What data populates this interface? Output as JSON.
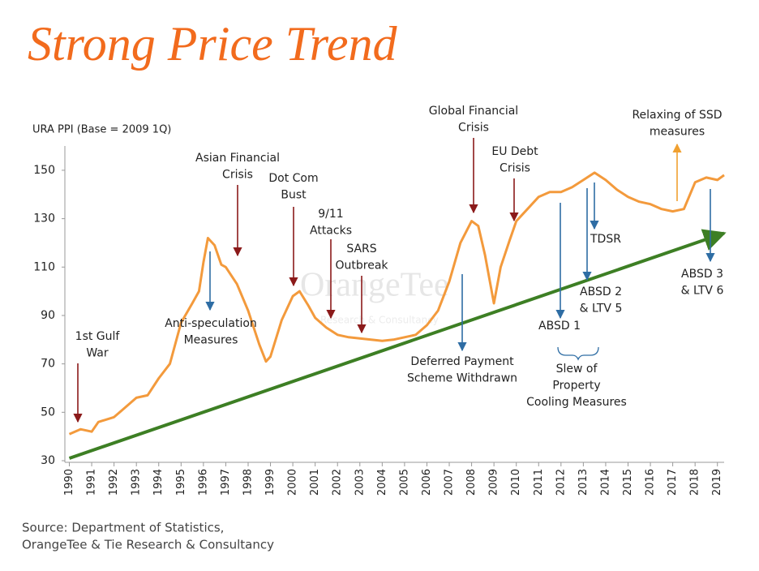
{
  "chart_data": {
    "type": "line",
    "title": "Strong Price Trend",
    "y_label": "URA PPI (Base = 2009 1Q)",
    "source": [
      "Source: Department of Statistics,",
      "OrangeTee & Tie Research & Consultancy"
    ],
    "watermark": [
      "OrangeTee",
      "Research & Consultancy"
    ],
    "color": "#f39a3c",
    "x": [
      1990.0,
      1990.5,
      1991.0,
      1991.3,
      1992.0,
      1992.5,
      1993.0,
      1993.5,
      1994.0,
      1994.5,
      1995.0,
      1995.5,
      1995.8,
      1996.0,
      1996.2,
      1996.5,
      1996.8,
      1997.0,
      1997.5,
      1998.0,
      1998.5,
      1998.8,
      1999.0,
      1999.5,
      2000.0,
      2000.3,
      2000.7,
      2001.0,
      2001.5,
      2002.0,
      2002.5,
      2003.0,
      2003.5,
      2004.0,
      2004.5,
      2005.0,
      2005.5,
      2006.0,
      2006.5,
      2007.0,
      2007.5,
      2008.0,
      2008.3,
      2008.6,
      2009.0,
      2009.3,
      2009.7,
      2010.0,
      2010.5,
      2011.0,
      2011.5,
      2012.0,
      2012.5,
      2013.0,
      2013.5,
      2014.0,
      2014.5,
      2015.0,
      2015.5,
      2016.0,
      2016.5,
      2017.0,
      2017.5,
      2018.0,
      2018.5,
      2019.0,
      2019.3
    ],
    "values": [
      41,
      43,
      42,
      46,
      48,
      52,
      56,
      57,
      64,
      70,
      87,
      95,
      100,
      112,
      122,
      119,
      111,
      110,
      103,
      92,
      78,
      71,
      73,
      88,
      98,
      100,
      94,
      89,
      85,
      82,
      81,
      80.5,
      80,
      79.5,
      80,
      81,
      82,
      86,
      92,
      104,
      120,
      129,
      127,
      115,
      95,
      110,
      121,
      129,
      134,
      139,
      141,
      141,
      143,
      146,
      149,
      146,
      142,
      139,
      137,
      136,
      134,
      133,
      134,
      145,
      147,
      146,
      148
    ],
    "trend": {
      "x": [
        1990,
        2019.3
      ],
      "values": [
        31,
        124
      ],
      "color": "#3d7f24"
    },
    "xlim": [
      1989.8,
      2019.3
    ],
    "ylim": [
      30,
      155
    ],
    "xticks": [
      1990,
      1991,
      1992,
      1993,
      1994,
      1995,
      1996,
      1997,
      1998,
      1999,
      2000,
      2001,
      2002,
      2003,
      2004,
      2005,
      2006,
      2007,
      2008,
      2009,
      2010,
      2011,
      2012,
      2013,
      2014,
      2015,
      2016,
      2017,
      2018,
      2019
    ],
    "yticks": [
      30,
      50,
      70,
      90,
      110,
      130,
      150
    ],
    "annotations": [
      {
        "lines": [
          "1st Gulf",
          "War"
        ],
        "color": "#8b1a1a"
      },
      {
        "lines": [
          "Asian Financial",
          "Crisis"
        ],
        "color": "#8b1a1a"
      },
      {
        "lines": [
          "Anti-speculation",
          "Measures"
        ],
        "color": "#2e6da4"
      },
      {
        "lines": [
          "Dot Com",
          "Bust"
        ],
        "color": "#8b1a1a"
      },
      {
        "lines": [
          "9/11",
          "Attacks"
        ],
        "color": "#8b1a1a"
      },
      {
        "lines": [
          "SARS",
          "Outbreak"
        ],
        "color": "#8b1a1a"
      },
      {
        "lines": [
          "Global Financial",
          "Crisis"
        ],
        "color": "#8b1a1a"
      },
      {
        "lines": [
          "EU Debt",
          "Crisis"
        ],
        "color": "#8b1a1a"
      },
      {
        "lines": [
          "Deferred Payment",
          "Scheme Withdrawn"
        ],
        "color": "#2e6da4"
      },
      {
        "lines": [
          "Relaxing of SSD",
          "measures"
        ],
        "color": "#f0a030"
      },
      {
        "lines": [
          "TDSR"
        ],
        "color": "#2e6da4"
      },
      {
        "lines": [
          "ABSD 2",
          "& LTV 5"
        ],
        "color": "#2e6da4"
      },
      {
        "lines": [
          "ABSD 1"
        ],
        "color": "#2e6da4"
      },
      {
        "lines": [
          "ABSD 3",
          "& LTV 6"
        ],
        "color": "#2e6da4"
      },
      {
        "lines": [
          "Slew of",
          "Property",
          "Cooling Measures"
        ],
        "color": "#2e6da4"
      }
    ]
  }
}
